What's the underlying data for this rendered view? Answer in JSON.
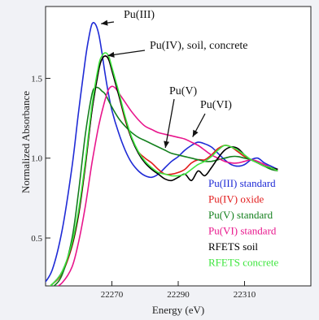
{
  "chart_data": {
    "type": "line",
    "title": "",
    "xlabel": "Energy (eV)",
    "ylabel": "Normalized Absorbance",
    "xlim": [
      22250,
      22330
    ],
    "ylim": [
      0.2,
      1.95
    ],
    "x_ticks": [
      {
        "value": 22270,
        "label": "22270"
      },
      {
        "value": 22290,
        "label": "22290"
      },
      {
        "value": 22310,
        "label": "22310"
      }
    ],
    "y_ticks": [
      {
        "value": 0.5,
        "label": "0.5"
      },
      {
        "value": 1.0,
        "label": "1.0"
      },
      {
        "value": 1.5,
        "label": "1.5"
      }
    ],
    "grid": false,
    "legend_position": "bottom-right",
    "series": [
      {
        "name": "Pu(III) standard",
        "color": "#1f2bd6",
        "x": [
          22249,
          22252,
          22255,
          22258,
          22260,
          22262,
          22263,
          22264,
          22265,
          22266,
          22267,
          22268,
          22269,
          22270,
          22272,
          22274,
          22276,
          22278,
          22280,
          22282,
          22284,
          22286,
          22288,
          22290,
          22292,
          22294,
          22296,
          22298,
          22300,
          22302,
          22304,
          22306,
          22308,
          22310,
          22312,
          22314,
          22316,
          22318,
          22320
        ],
        "y": [
          0.2,
          0.3,
          0.55,
          0.95,
          1.3,
          1.62,
          1.75,
          1.84,
          1.84,
          1.78,
          1.66,
          1.52,
          1.4,
          1.3,
          1.16,
          1.05,
          0.97,
          0.92,
          0.89,
          0.88,
          0.9,
          0.94,
          0.98,
          1.01,
          1.05,
          1.08,
          1.1,
          1.09,
          1.07,
          1.03,
          0.99,
          0.96,
          0.95,
          0.96,
          0.99,
          1.0,
          0.97,
          0.95,
          0.93
        ]
      },
      {
        "name": "Pu(IV) oxide",
        "color": "#e21b1b",
        "x": [
          22249,
          22252,
          22255,
          22258,
          22260,
          22262,
          22264,
          22266,
          22267,
          22268,
          22269,
          22270,
          22272,
          22274,
          22276,
          22278,
          22280,
          22282,
          22284,
          22286,
          22288,
          22290,
          22292,
          22294,
          22296,
          22298,
          22300,
          22302,
          22304,
          22306,
          22308,
          22310,
          22312,
          22314,
          22316,
          22318,
          22320
        ],
        "y": [
          0.17,
          0.21,
          0.28,
          0.45,
          0.65,
          0.95,
          1.3,
          1.55,
          1.62,
          1.64,
          1.62,
          1.55,
          1.4,
          1.24,
          1.12,
          1.04,
          1.0,
          0.97,
          0.93,
          0.9,
          0.9,
          0.91,
          0.93,
          0.97,
          0.99,
          0.99,
          1.02,
          1.06,
          1.08,
          1.07,
          1.04,
          1.01,
          0.99,
          0.97,
          0.95,
          0.94,
          0.93
        ]
      },
      {
        "name": "Pu(V) standard",
        "color": "#14801e",
        "x": [
          22249,
          22252,
          22255,
          22258,
          22260,
          22262,
          22264,
          22265,
          22266,
          22267,
          22268,
          22270,
          22272,
          22274,
          22276,
          22278,
          22280,
          22282,
          22284,
          22286,
          22288,
          22290,
          22292,
          22294,
          22296,
          22298,
          22300,
          22302,
          22304,
          22306,
          22308,
          22310,
          22312,
          22314,
          22316,
          22318,
          22320
        ],
        "y": [
          0.15,
          0.19,
          0.27,
          0.5,
          0.8,
          1.15,
          1.4,
          1.44,
          1.44,
          1.42,
          1.4,
          1.32,
          1.25,
          1.2,
          1.16,
          1.13,
          1.11,
          1.09,
          1.07,
          1.05,
          1.03,
          1.02,
          1.01,
          1.0,
          0.99,
          0.98,
          0.98,
          0.99,
          1.0,
          1.01,
          1.01,
          1.0,
          0.99,
          0.97,
          0.95,
          0.93,
          0.92
        ]
      },
      {
        "name": "Pu(VI) standard",
        "color": "#e8168c",
        "x": [
          22249,
          22252,
          22255,
          22258,
          22260,
          22262,
          22264,
          22266,
          22268,
          22269,
          22270,
          22271,
          22272,
          22274,
          22276,
          22278,
          22280,
          22282,
          22284,
          22286,
          22288,
          22290,
          22292,
          22294,
          22296,
          22298,
          22300,
          22302,
          22304,
          22306,
          22308,
          22310,
          22312,
          22314,
          22316,
          22318,
          22320
        ],
        "y": [
          0.15,
          0.18,
          0.22,
          0.32,
          0.48,
          0.7,
          0.97,
          1.2,
          1.37,
          1.43,
          1.45,
          1.44,
          1.41,
          1.35,
          1.29,
          1.24,
          1.2,
          1.18,
          1.16,
          1.15,
          1.14,
          1.13,
          1.12,
          1.1,
          1.08,
          1.05,
          1.02,
          1.0,
          0.98,
          0.97,
          0.97,
          0.98,
          0.99,
          0.98,
          0.96,
          0.94,
          0.92
        ]
      },
      {
        "name": "RFETS soil",
        "color": "#000000",
        "x": [
          22249,
          22252,
          22255,
          22258,
          22260,
          22262,
          22264,
          22266,
          22267,
          22268,
          22269,
          22270,
          22272,
          22274,
          22276,
          22278,
          22280,
          22282,
          22284,
          22286,
          22288,
          22290,
          22292,
          22294,
          22296,
          22298,
          22300,
          22302,
          22304,
          22306,
          22308,
          22310,
          22312,
          22314,
          22316,
          22318,
          22320
        ],
        "y": [
          0.17,
          0.21,
          0.29,
          0.46,
          0.66,
          0.96,
          1.3,
          1.55,
          1.62,
          1.64,
          1.62,
          1.55,
          1.4,
          1.25,
          1.12,
          1.03,
          0.97,
          0.93,
          0.9,
          0.87,
          0.86,
          0.88,
          0.9,
          0.86,
          0.92,
          0.89,
          0.94,
          1.0,
          1.05,
          1.07,
          1.06,
          1.02,
          0.99,
          0.97,
          0.95,
          0.94,
          0.93
        ]
      },
      {
        "name": "RFETS concrete",
        "color": "#3ee63e",
        "x": [
          22249,
          22252,
          22255,
          22258,
          22260,
          22262,
          22264,
          22266,
          22267,
          22268,
          22269,
          22270,
          22272,
          22274,
          22276,
          22278,
          22280,
          22282,
          22284,
          22286,
          22288,
          22290,
          22292,
          22294,
          22296,
          22298,
          22300,
          22302,
          22304,
          22306,
          22308,
          22310,
          22312,
          22314,
          22316,
          22318,
          22320
        ],
        "y": [
          0.17,
          0.21,
          0.29,
          0.47,
          0.68,
          0.98,
          1.33,
          1.58,
          1.64,
          1.66,
          1.64,
          1.57,
          1.42,
          1.26,
          1.13,
          1.04,
          0.98,
          0.94,
          0.91,
          0.9,
          0.89,
          0.89,
          0.9,
          0.93,
          0.96,
          0.98,
          1.01,
          1.05,
          1.08,
          1.07,
          1.05,
          1.02,
          0.99,
          0.97,
          0.95,
          0.94,
          0.92
        ]
      }
    ],
    "annotations": [
      {
        "text": "Pu(III)",
        "x": 22266,
        "y": 1.84
      },
      {
        "text": "Pu(IV), soil, concrete",
        "x": 22268,
        "y": 1.64
      },
      {
        "text": "Pu(V)",
        "x": 22286,
        "y": 1.05
      },
      {
        "text": "Pu(VI)",
        "x": 22294,
        "y": 1.12
      }
    ]
  }
}
